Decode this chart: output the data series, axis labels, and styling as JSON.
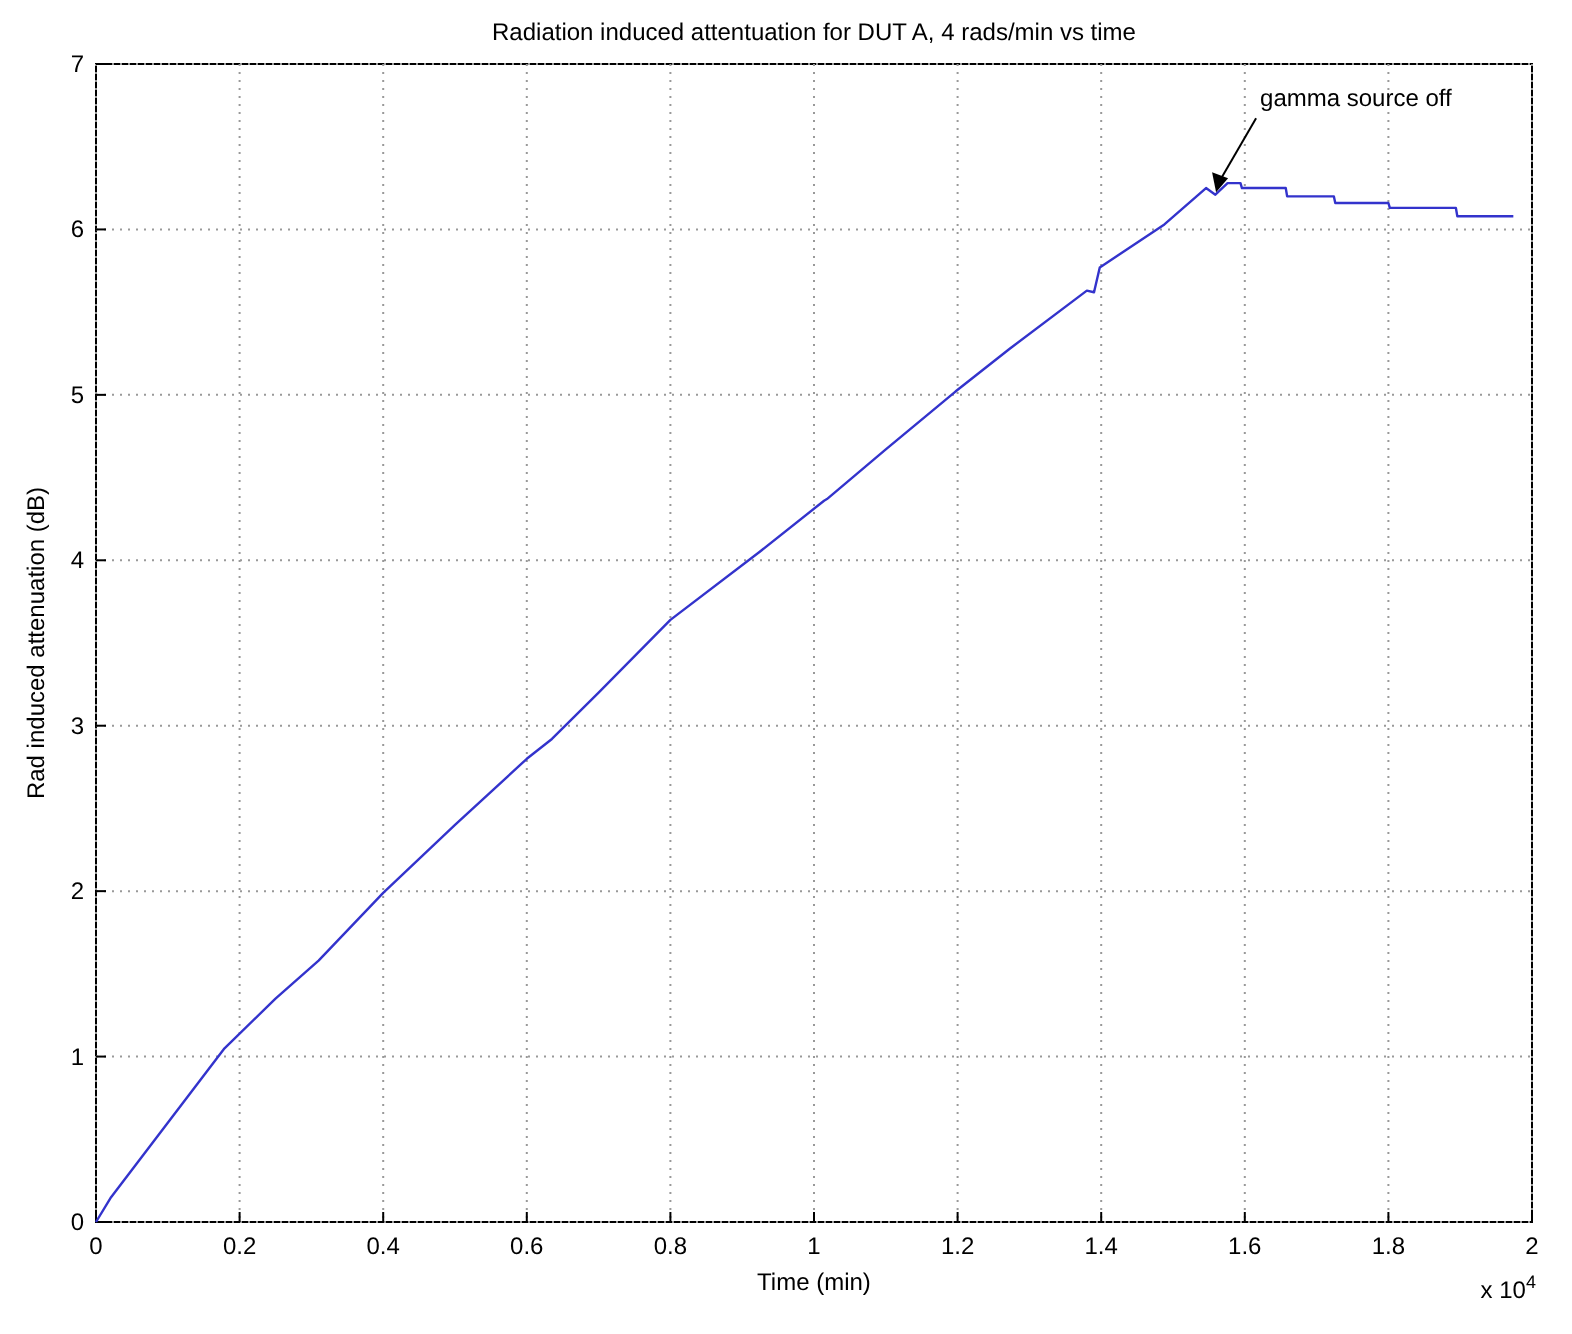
{
  "chart_data": {
    "type": "line",
    "title": "Radiation induced attentuation for DUT A, 4 rads/min vs time",
    "xlabel": "Time (min)",
    "ylabel": "Rad induced attenuation (dB)",
    "x": [
      0,
      0.021,
      0.1,
      0.179,
      0.25,
      0.31,
      0.4,
      0.5,
      0.6,
      0.635,
      0.7,
      0.8,
      0.924,
      1.014,
      1.018,
      1.1,
      1.197,
      1.273,
      1.38,
      1.39,
      1.398,
      1.488,
      1.546,
      1.559,
      1.576,
      1.594,
      1.596,
      1.657,
      1.659,
      1.724,
      1.726,
      1.8,
      1.802,
      1.894,
      1.896,
      1.974
    ],
    "series": [
      {
        "color": "#3333cc",
        "values": [
          0,
          0.15,
          0.6,
          1.05,
          1.35,
          1.58,
          1.99,
          2.4,
          2.8,
          2.92,
          3.2,
          3.64,
          4.05,
          4.36,
          4.37,
          4.67,
          5.02,
          5.28,
          5.63,
          5.62,
          5.77,
          6.03,
          6.25,
          6.21,
          6.28,
          6.28,
          6.25,
          6.25,
          6.2,
          6.2,
          6.16,
          6.16,
          6.13,
          6.13,
          6.08,
          6.08
        ]
      }
    ],
    "xlim": [
      0,
      2
    ],
    "xticks": [
      0,
      0.2,
      0.4,
      0.6,
      0.8,
      1,
      1.2,
      1.4,
      1.6,
      1.8,
      2
    ],
    "ylim": [
      0,
      7
    ],
    "yticks": [
      0,
      1,
      2,
      3,
      4,
      5,
      6,
      7
    ],
    "grid": true,
    "line_style": "solid",
    "marker": "none",
    "annotations": [
      {
        "text": "gamma source off",
        "x": 1.56,
        "y": 6.2
      },
      "x 10$^{4}$"
    ]
  }
}
